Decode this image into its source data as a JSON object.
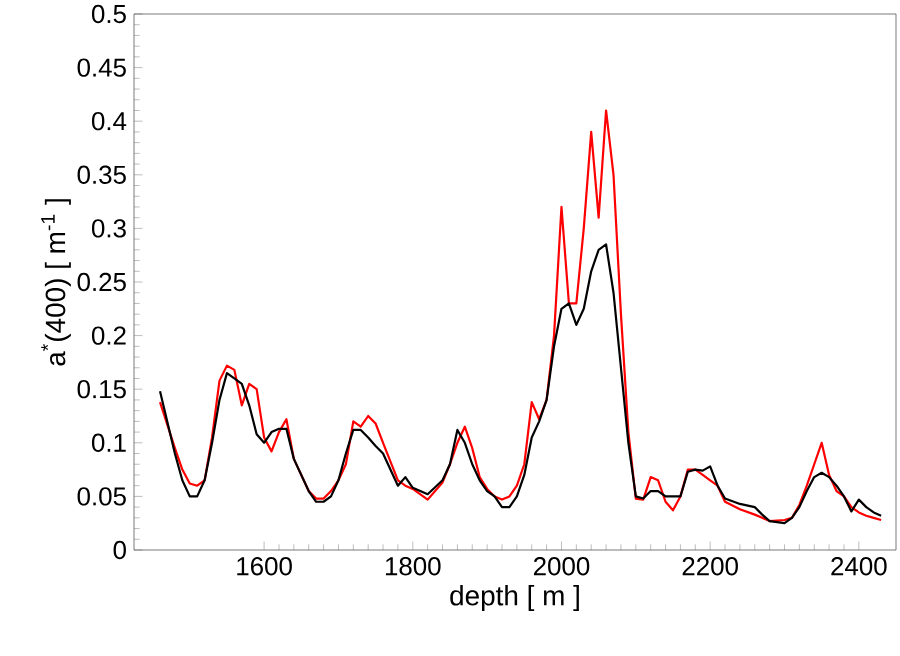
{
  "chart_data": {
    "type": "line",
    "xlabel": "depth [ m ]",
    "ylabel": "a$^{*}$(400) [ m$^{-1}$ ]",
    "x": [
      1460,
      1480,
      1490,
      1500,
      1510,
      1520,
      1530,
      1540,
      1550,
      1560,
      1570,
      1580,
      1590,
      1600,
      1610,
      1620,
      1630,
      1640,
      1660,
      1670,
      1680,
      1690,
      1700,
      1710,
      1720,
      1730,
      1740,
      1750,
      1760,
      1780,
      1790,
      1800,
      1820,
      1840,
      1850,
      1860,
      1870,
      1880,
      1890,
      1900,
      1910,
      1920,
      1930,
      1940,
      1950,
      1960,
      1970,
      1980,
      1990,
      2000,
      2010,
      2020,
      2030,
      2040,
      2050,
      2060,
      2070,
      2080,
      2090,
      2100,
      2110,
      2120,
      2130,
      2140,
      2150,
      2160,
      2170,
      2180,
      2190,
      2200,
      2210,
      2220,
      2240,
      2260,
      2270,
      2280,
      2300,
      2310,
      2320,
      2330,
      2340,
      2350,
      2360,
      2370,
      2380,
      2390,
      2400,
      2410,
      2420,
      2430
    ],
    "series": [
      {
        "color": "#ff0000",
        "values": [
          0.138,
          0.095,
          0.075,
          0.062,
          0.06,
          0.065,
          0.105,
          0.158,
          0.172,
          0.168,
          0.135,
          0.155,
          0.15,
          0.105,
          0.092,
          0.11,
          0.122,
          0.085,
          0.055,
          0.048,
          0.048,
          0.055,
          0.065,
          0.08,
          0.12,
          0.115,
          0.125,
          0.118,
          0.1,
          0.065,
          0.06,
          0.057,
          0.047,
          0.063,
          0.08,
          0.1,
          0.115,
          0.095,
          0.068,
          0.057,
          0.05,
          0.047,
          0.05,
          0.06,
          0.08,
          0.138,
          0.122,
          0.14,
          0.2,
          0.32,
          0.23,
          0.23,
          0.3,
          0.39,
          0.31,
          0.41,
          0.35,
          0.22,
          0.11,
          0.048,
          0.047,
          0.068,
          0.065,
          0.045,
          0.037,
          0.05,
          0.075,
          0.075,
          0.07,
          0.065,
          0.06,
          0.045,
          0.038,
          0.033,
          0.03,
          0.027,
          0.028,
          0.03,
          0.042,
          0.06,
          0.08,
          0.1,
          0.07,
          0.055,
          0.05,
          0.04,
          0.035,
          0.032,
          0.03,
          0.028
        ]
      },
      {
        "color": "#000000",
        "values": [
          0.148,
          0.09,
          0.065,
          0.05,
          0.05,
          0.065,
          0.1,
          0.14,
          0.165,
          0.16,
          0.155,
          0.135,
          0.108,
          0.1,
          0.11,
          0.113,
          0.113,
          0.085,
          0.055,
          0.045,
          0.045,
          0.05,
          0.065,
          0.09,
          0.112,
          0.112,
          0.105,
          0.097,
          0.09,
          0.06,
          0.068,
          0.058,
          0.052,
          0.065,
          0.08,
          0.112,
          0.1,
          0.08,
          0.065,
          0.055,
          0.05,
          0.04,
          0.04,
          0.05,
          0.07,
          0.105,
          0.12,
          0.14,
          0.19,
          0.225,
          0.23,
          0.21,
          0.225,
          0.26,
          0.28,
          0.285,
          0.24,
          0.17,
          0.1,
          0.05,
          0.048,
          0.055,
          0.055,
          0.05,
          0.05,
          0.05,
          0.073,
          0.075,
          0.074,
          0.078,
          0.06,
          0.048,
          0.043,
          0.04,
          0.033,
          0.027,
          0.025,
          0.03,
          0.04,
          0.055,
          0.068,
          0.072,
          0.068,
          0.06,
          0.05,
          0.036,
          0.047,
          0.04,
          0.035,
          0.032
        ]
      }
    ],
    "xlim": [
      1425,
      2450
    ],
    "ylim": [
      0,
      0.5
    ],
    "xticks": [
      1600,
      1800,
      2000,
      2200,
      2400
    ],
    "yticks": [
      0,
      0.05,
      0.1,
      0.15,
      0.2,
      0.25,
      0.3,
      0.35,
      0.4,
      0.45,
      0.5
    ]
  }
}
